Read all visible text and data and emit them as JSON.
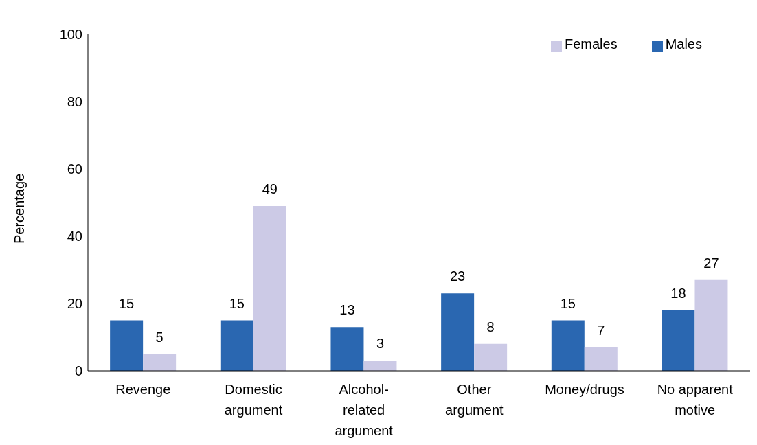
{
  "chart_data": {
    "type": "bar",
    "ylabel": "Percentage",
    "categories": [
      "Revenge",
      "Domestic argument",
      "Alcohol-related argument",
      "Other argument",
      "Money/drugs",
      "No apparent motive"
    ],
    "series": [
      {
        "name": "Males",
        "color": "#2a67b1",
        "values": [
          15,
          15,
          13,
          23,
          15,
          18
        ]
      },
      {
        "name": "Females",
        "color": "#cccae6",
        "values": [
          5,
          49,
          3,
          8,
          7,
          27
        ]
      }
    ],
    "ylim": [
      0,
      100
    ],
    "yticks": [
      0,
      20,
      40,
      60,
      80,
      100
    ],
    "grid": false,
    "legend": "top right",
    "data_labels": true
  }
}
